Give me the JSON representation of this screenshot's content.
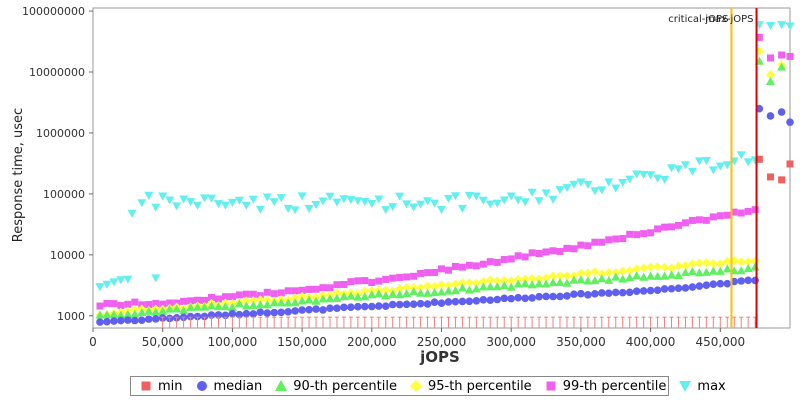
{
  "chart_data": {
    "type": "scatter",
    "xlabel": "jOPS",
    "ylabel": "Response time, usec",
    "x_ticks": [
      "0",
      "50,000",
      "100,000",
      "150,000",
      "200,000",
      "250,000",
      "300,000",
      "350,000",
      "400,000",
      "450,000"
    ],
    "y_ticks": [
      "1000",
      "10000",
      "100000",
      "1000000",
      "10000000",
      "100000000"
    ],
    "xlim": [
      0,
      500000
    ],
    "ylim_log10": [
      2.8,
      8.05
    ],
    "log_y": true,
    "grid": true,
    "legend_position": "bottom",
    "vlines": [
      {
        "label": "critical-jOPS",
        "x": 458000,
        "color": "#ffc000"
      },
      {
        "label": "max-jOPS",
        "x": 476000,
        "color": "#e00000"
      }
    ],
    "series": [
      {
        "name": "min",
        "color": "#f06060",
        "marker": "square"
      },
      {
        "name": "median",
        "color": "#6060f0",
        "marker": "circle"
      },
      {
        "name": "90-th percentile",
        "color": "#60f060",
        "marker": "triangle-up"
      },
      {
        "name": "95-th percentile",
        "color": "#ffff40",
        "marker": "diamond"
      },
      {
        "name": "99-th percentile",
        "color": "#f060f0",
        "marker": "square"
      },
      {
        "name": "max",
        "color": "#60f0f0",
        "marker": "triangle-down"
      }
    ]
  }
}
